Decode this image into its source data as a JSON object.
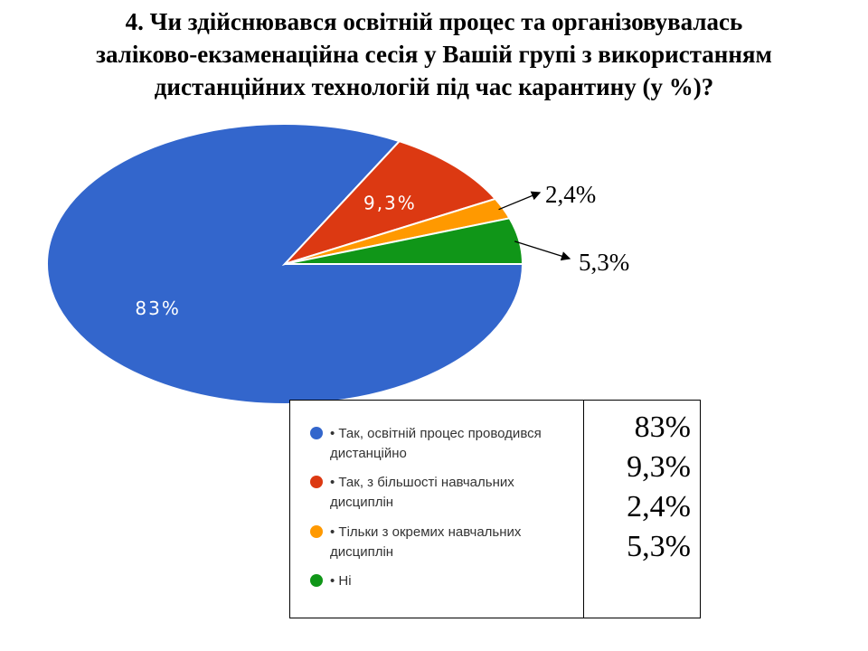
{
  "title": {
    "line1": "4. Чи здійснювався освітній процес та організовувалась",
    "line2": "заліково-екзаменаційна сесія у Вашій групі з використанням",
    "line3": "дистанційних технологій під час карантину (у %)?"
  },
  "chart_data": {
    "type": "pie",
    "categories": [
      "• Так, освітній процес проводився дистанційно",
      "• Так, з більшості навчальних дисциплін",
      "• Тільки з окремих навчальних дисциплін",
      "• Ні"
    ],
    "values": [
      83,
      9.3,
      2.4,
      5.3
    ],
    "value_labels": [
      "83%",
      "9,3%",
      "2,4%",
      "5,3%"
    ],
    "colors": [
      "#3366cc",
      "#dc3912",
      "#ff9900",
      "#109618"
    ],
    "legend_placement": "bottom-right"
  },
  "legend": {
    "items": [
      {
        "line1": "• Так, освітній процес проводився",
        "line2": "дистанційно",
        "color": "#3366cc"
      },
      {
        "line1": "• Так, з більшості навчальних",
        "line2": "дисциплін",
        "color": "#dc3912"
      },
      {
        "line1": "• Тільки з окремих навчальних",
        "line2": "дисциплін",
        "color": "#ff9900"
      },
      {
        "line1": "• Ні",
        "line2": "",
        "color": "#109618"
      }
    ],
    "values": [
      "83%",
      "9,3%",
      "2,4%",
      "5,3%"
    ]
  }
}
